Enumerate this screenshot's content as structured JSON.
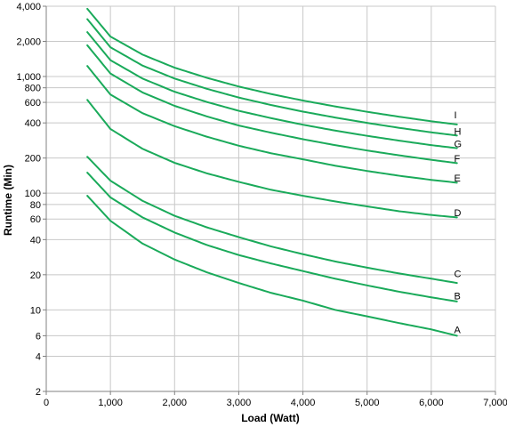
{
  "chart_data": {
    "type": "line",
    "title": "",
    "xlabel": "Load (Watt)",
    "ylabel": "Runtime (Min)",
    "xlim": [
      0,
      7000
    ],
    "ylim": [
      2,
      4000
    ],
    "y_scale": "log",
    "grid": true,
    "legend": "none",
    "line_color": "#1aaa5a",
    "x_ticks": [
      {
        "v": 0,
        "label": "0"
      },
      {
        "v": 1000,
        "label": "1,000"
      },
      {
        "v": 2000,
        "label": "2,000"
      },
      {
        "v": 3000,
        "label": "3,000"
      },
      {
        "v": 4000,
        "label": "4,000"
      },
      {
        "v": 5000,
        "label": "5,000"
      },
      {
        "v": 6000,
        "label": "6,000"
      },
      {
        "v": 7000,
        "label": "7,000"
      }
    ],
    "y_ticks": [
      {
        "v": 2,
        "label": "2"
      },
      {
        "v": 4,
        "label": "4"
      },
      {
        "v": 6,
        "label": "6"
      },
      {
        "v": 10,
        "label": "10"
      },
      {
        "v": 20,
        "label": "20"
      },
      {
        "v": 40,
        "label": "40"
      },
      {
        "v": 60,
        "label": "60"
      },
      {
        "v": 80,
        "label": "80"
      },
      {
        "v": 100,
        "label": "100"
      },
      {
        "v": 200,
        "label": "200"
      },
      {
        "v": 400,
        "label": "400"
      },
      {
        "v": 600,
        "label": "600"
      },
      {
        "v": 800,
        "label": "800"
      },
      {
        "v": 1000,
        "label": "1,000"
      },
      {
        "v": 2000,
        "label": "2,000"
      },
      {
        "v": 4000,
        "label": "4,000"
      }
    ],
    "x": [
      640,
      1000,
      1500,
      2000,
      2500,
      3000,
      3500,
      4000,
      4500,
      5000,
      5500,
      6000,
      6400
    ],
    "series": [
      {
        "name": "A",
        "values": [
          95,
          58,
          37,
          27,
          21,
          17,
          14,
          12,
          10,
          8.8,
          7.7,
          6.8,
          6
        ]
      },
      {
        "name": "B",
        "values": [
          150,
          92,
          62,
          46,
          36,
          29.5,
          25,
          21.5,
          18.5,
          16.2,
          14.3,
          12.8,
          11.8
        ]
      },
      {
        "name": "C",
        "values": [
          205,
          128,
          86,
          64,
          51,
          42,
          35,
          30,
          26,
          23,
          20.5,
          18.5,
          17
        ]
      },
      {
        "name": "D",
        "values": [
          630,
          355,
          240,
          182,
          148,
          125,
          107,
          95,
          85,
          77,
          70,
          65,
          62
        ]
      },
      {
        "name": "E",
        "values": [
          1230,
          700,
          485,
          375,
          305,
          255,
          220,
          195,
          172,
          155,
          141,
          130,
          123
        ]
      },
      {
        "name": "F",
        "values": [
          1850,
          1060,
          730,
          560,
          455,
          380,
          330,
          290,
          258,
          232,
          211,
          193,
          181
        ]
      },
      {
        "name": "G",
        "values": [
          2400,
          1380,
          960,
          740,
          605,
          508,
          440,
          386,
          344,
          310,
          282,
          258,
          243
        ]
      },
      {
        "name": "H",
        "values": [
          3100,
          1780,
          1240,
          960,
          785,
          660,
          570,
          500,
          445,
          400,
          363,
          332,
          312
        ]
      },
      {
        "name": "I",
        "values": [
          3800,
          2200,
          1540,
          1190,
          975,
          820,
          708,
          622,
          554,
          498,
          452,
          413,
          388
        ]
      }
    ],
    "series_label_x": 6300,
    "series_label_y": [
      6.8,
      13.2,
      20.5,
      68,
      135,
      199,
      266,
      340,
      470
    ]
  }
}
